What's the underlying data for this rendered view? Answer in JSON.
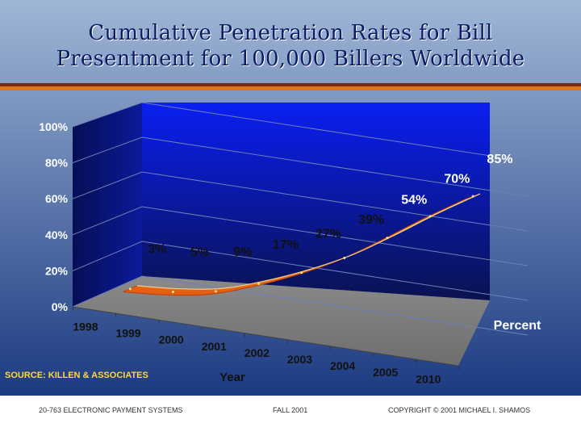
{
  "slide": {
    "title_line1": "Cumulative Penetration Rates for Bill",
    "title_line2": "Presentment for 100,000 Billers Worldwide",
    "source": "SOURCE: KILLEN & ASSOCIATES",
    "footer_left": "20-763 ELECTRONIC PAYMENT SYSTEMS",
    "footer_center": "FALL 2001",
    "footer_right": "COPYRIGHT © 2001 MICHAEL I. SHAMOS"
  },
  "colors": {
    "background_top": "#9fb7d6",
    "background_bottom": "#1c3a82",
    "back_wall_top": "#0a1ff2",
    "back_wall_bottom": "#0a1250",
    "floor": "#777777",
    "ribbon": "#f7a021",
    "label_dark": "#111111",
    "label_light": "#ffffff",
    "accent_text": "#ffd83a"
  },
  "chart_data": {
    "type": "line",
    "style": "3d-ribbon",
    "categories": [
      "1998",
      "1999",
      "2000",
      "2001",
      "2002",
      "2003",
      "2004",
      "2005",
      "2010"
    ],
    "series": [
      {
        "name": "Percent",
        "values": [
          3,
          5,
          9,
          17,
          27,
          39,
          54,
          70,
          85
        ],
        "labels": [
          "3%",
          "5%",
          "9%",
          "17%",
          "27%",
          "39%",
          "54%",
          "70%",
          "85%"
        ]
      }
    ],
    "xlabel": "Year",
    "ylabel": "",
    "ylim": [
      0,
      100
    ],
    "yticks": [
      "0%",
      "20%",
      "40%",
      "60%",
      "80%",
      "100%"
    ],
    "grid": true,
    "legend": "right"
  }
}
